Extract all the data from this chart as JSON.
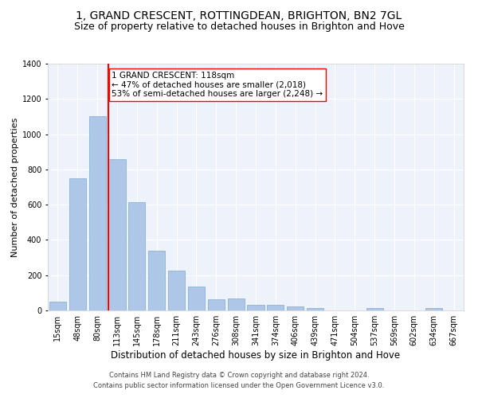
{
  "title": "1, GRAND CRESCENT, ROTTINGDEAN, BRIGHTON, BN2 7GL",
  "subtitle": "Size of property relative to detached houses in Brighton and Hove",
  "xlabel": "Distribution of detached houses by size in Brighton and Hove",
  "ylabel": "Number of detached properties",
  "footnote1": "Contains HM Land Registry data © Crown copyright and database right 2024.",
  "footnote2": "Contains public sector information licensed under the Open Government Licence v3.0.",
  "categories": [
    "15sqm",
    "48sqm",
    "80sqm",
    "113sqm",
    "145sqm",
    "178sqm",
    "211sqm",
    "243sqm",
    "276sqm",
    "308sqm",
    "341sqm",
    "374sqm",
    "406sqm",
    "439sqm",
    "471sqm",
    "504sqm",
    "537sqm",
    "569sqm",
    "602sqm",
    "634sqm",
    "667sqm"
  ],
  "values": [
    50,
    750,
    1100,
    860,
    615,
    340,
    225,
    135,
    65,
    70,
    30,
    30,
    22,
    12,
    0,
    0,
    12,
    0,
    0,
    12,
    0
  ],
  "bar_color": "#aec6e8",
  "bar_edge_color": "#7aaad0",
  "vline_x_index": 3,
  "vline_color": "red",
  "annotation_text": "1 GRAND CRESCENT: 118sqm\n← 47% of detached houses are smaller (2,018)\n53% of semi-detached houses are larger (2,248) →",
  "annotation_box_facecolor": "white",
  "annotation_box_edgecolor": "red",
  "ylim": [
    0,
    1400
  ],
  "yticks": [
    0,
    200,
    400,
    600,
    800,
    1000,
    1200,
    1400
  ],
  "bg_color": "#eef2fb",
  "grid_color": "white",
  "title_fontsize": 10,
  "subtitle_fontsize": 9,
  "xlabel_fontsize": 8.5,
  "ylabel_fontsize": 8,
  "tick_fontsize": 7,
  "footnote_fontsize": 6,
  "annotation_fontsize": 7.5
}
